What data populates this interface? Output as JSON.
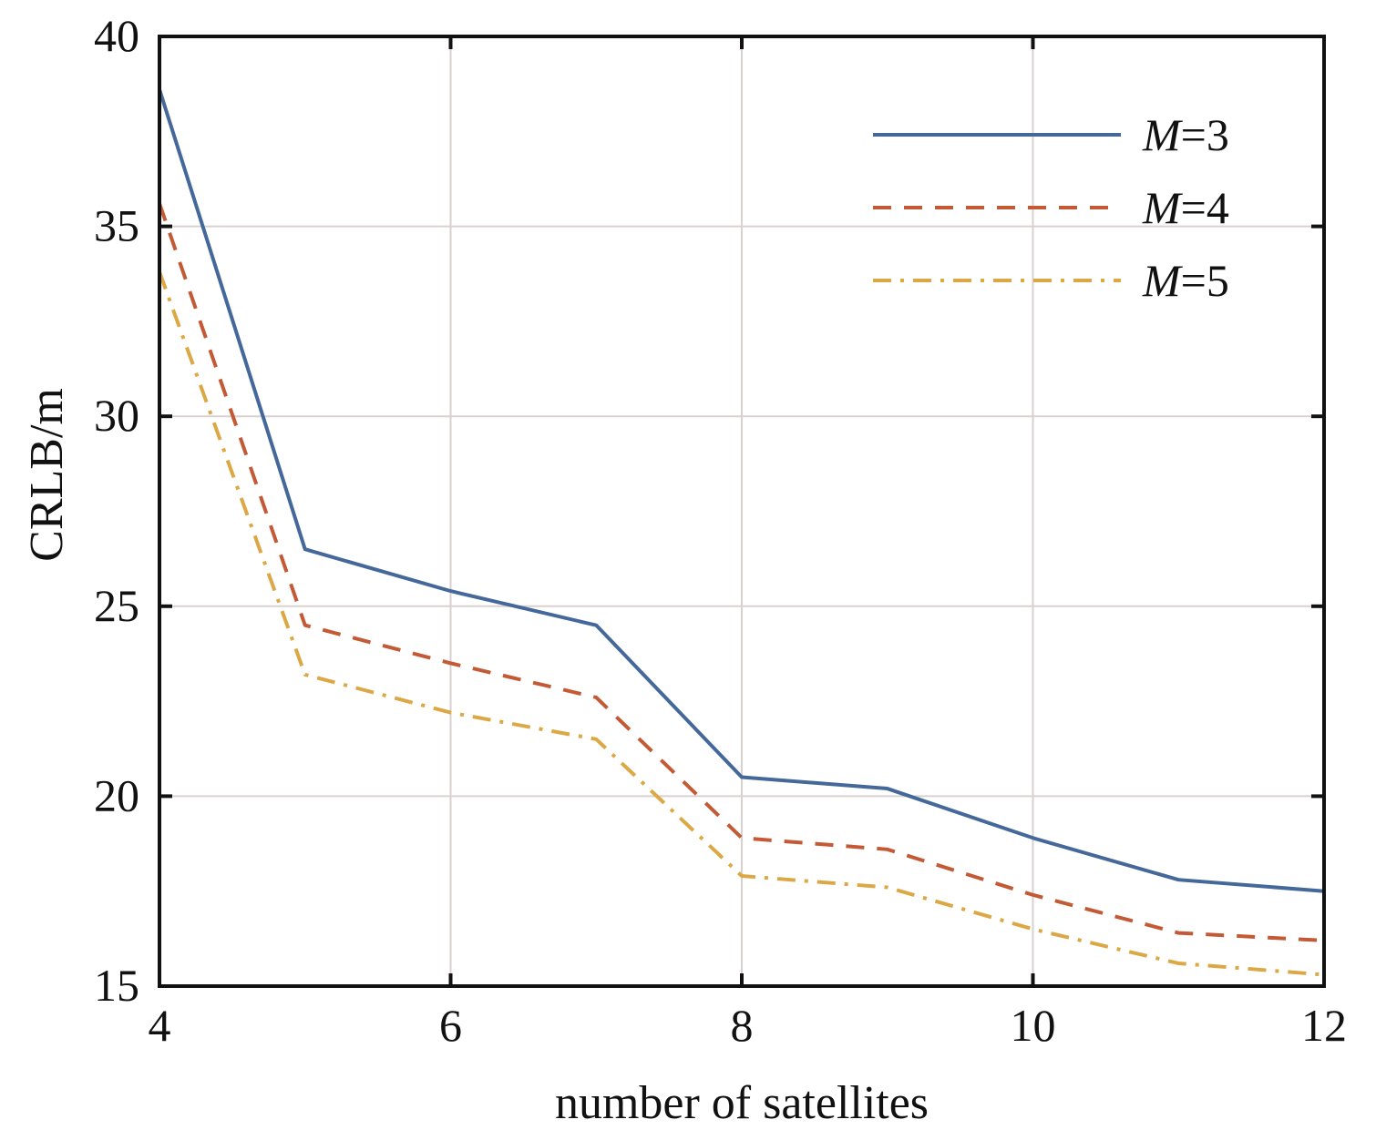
{
  "chart_data": {
    "type": "line",
    "title": "",
    "xlabel": "number of satellites",
    "ylabel": "CRLB/m",
    "xlim": [
      4,
      12
    ],
    "ylim": [
      15,
      40
    ],
    "xticks": [
      4,
      6,
      8,
      10,
      12
    ],
    "yticks": [
      15,
      20,
      25,
      30,
      35,
      40
    ],
    "grid": true,
    "legend_position": "top-right",
    "x": [
      4,
      5,
      6,
      7,
      8,
      9,
      10,
      11,
      12
    ],
    "series": [
      {
        "name_prefix": "M",
        "name_suffix": "=3",
        "color": "#44689a",
        "dash": "solid",
        "values": [
          38.6,
          26.5,
          25.4,
          24.5,
          20.5,
          20.2,
          18.9,
          17.8,
          17.5
        ]
      },
      {
        "name_prefix": "M",
        "name_suffix": "=4",
        "color": "#c45a35",
        "dash": "dashed",
        "values": [
          35.6,
          24.5,
          23.5,
          22.6,
          18.9,
          18.6,
          17.4,
          16.4,
          16.2
        ]
      },
      {
        "name_prefix": "M",
        "name_suffix": "=5",
        "color": "#dca845",
        "dash": "dashdot",
        "values": [
          33.8,
          23.2,
          22.2,
          21.5,
          17.9,
          17.6,
          16.5,
          15.6,
          15.3
        ]
      }
    ]
  }
}
